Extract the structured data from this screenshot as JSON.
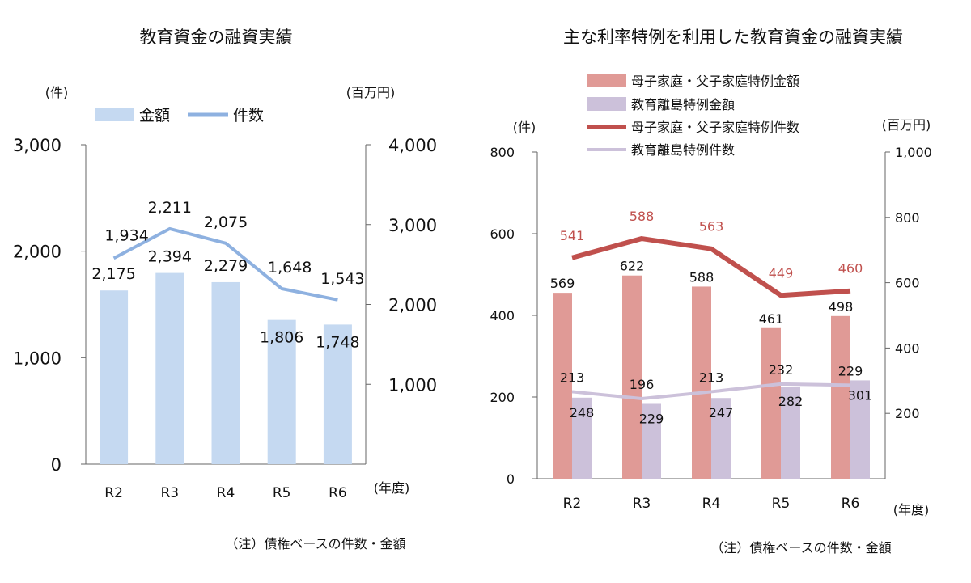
{
  "chart_data": [
    {
      "type": "bar",
      "title": "教育資金の融資実績",
      "categories": [
        "R2",
        "R3",
        "R4",
        "R5",
        "R6"
      ],
      "x_unit": "(年度)",
      "left_axis": {
        "unit": "(件)",
        "range": [
          0,
          3000
        ],
        "ticks": [
          "0",
          "1,000",
          "2,000",
          "3,000"
        ]
      },
      "right_axis": {
        "unit": "(百万円)",
        "range": [
          0,
          4000
        ],
        "ticks": [
          "1,000",
          "2,000",
          "3,000",
          "4,000"
        ]
      },
      "series": [
        {
          "name": "金額",
          "type": "bar",
          "axis": "right",
          "color": "#c5d9f1",
          "values": [
            2175,
            2394,
            2279,
            1806,
            1748
          ],
          "labels": [
            "2,175",
            "2,394",
            "2,279",
            "1,806",
            "1,748"
          ]
        },
        {
          "name": "件数",
          "type": "line",
          "axis": "left",
          "color": "#8eb1e0",
          "values": [
            1934,
            2211,
            2075,
            1648,
            1543
          ],
          "labels": [
            "1,934",
            "2,211",
            "2,075",
            "1,648",
            "1,543"
          ]
        }
      ],
      "legend": "top",
      "grid": false,
      "note": "（注）債権ベースの件数・金額"
    },
    {
      "type": "bar",
      "title": "主な利率特例を利用した教育資金の融資実績",
      "categories": [
        "R2",
        "R3",
        "R4",
        "R5",
        "R6"
      ],
      "x_unit": "(年度)",
      "left_axis": {
        "unit": "(件)",
        "range": [
          0,
          800
        ],
        "ticks": [
          "0",
          "200",
          "400",
          "600",
          "800"
        ]
      },
      "right_axis": {
        "unit": "(百万円)",
        "range": [
          0,
          1000
        ],
        "ticks": [
          "200",
          "400",
          "600",
          "800",
          "1,000"
        ]
      },
      "series": [
        {
          "name": "母子家庭・父子家庭特例金額",
          "type": "bar",
          "axis": "right",
          "color": "#e09a96",
          "values": [
            569,
            622,
            588,
            461,
            498
          ],
          "labels": [
            "569",
            "622",
            "588",
            "461",
            "498"
          ]
        },
        {
          "name": "教育離島特例金額",
          "type": "bar",
          "axis": "right",
          "color": "#ccc1da",
          "values": [
            248,
            229,
            247,
            282,
            301
          ],
          "labels": [
            "248",
            "229",
            "247",
            "282",
            "301"
          ]
        },
        {
          "name": "母子家庭・父子家庭特例件数",
          "type": "line",
          "axis": "left",
          "color": "#c0504d",
          "values": [
            541,
            588,
            563,
            449,
            460
          ],
          "labels": [
            "541",
            "588",
            "563",
            "449",
            "460"
          ]
        },
        {
          "name": "教育離島特例件数",
          "type": "line",
          "axis": "left",
          "color": "#ccc1da",
          "values": [
            213,
            196,
            213,
            232,
            229
          ],
          "labels": [
            "213",
            "196",
            "213",
            "232",
            "229"
          ]
        }
      ],
      "legend": "top",
      "grid": false,
      "note": "（注）債権ベースの件数・金額"
    }
  ]
}
